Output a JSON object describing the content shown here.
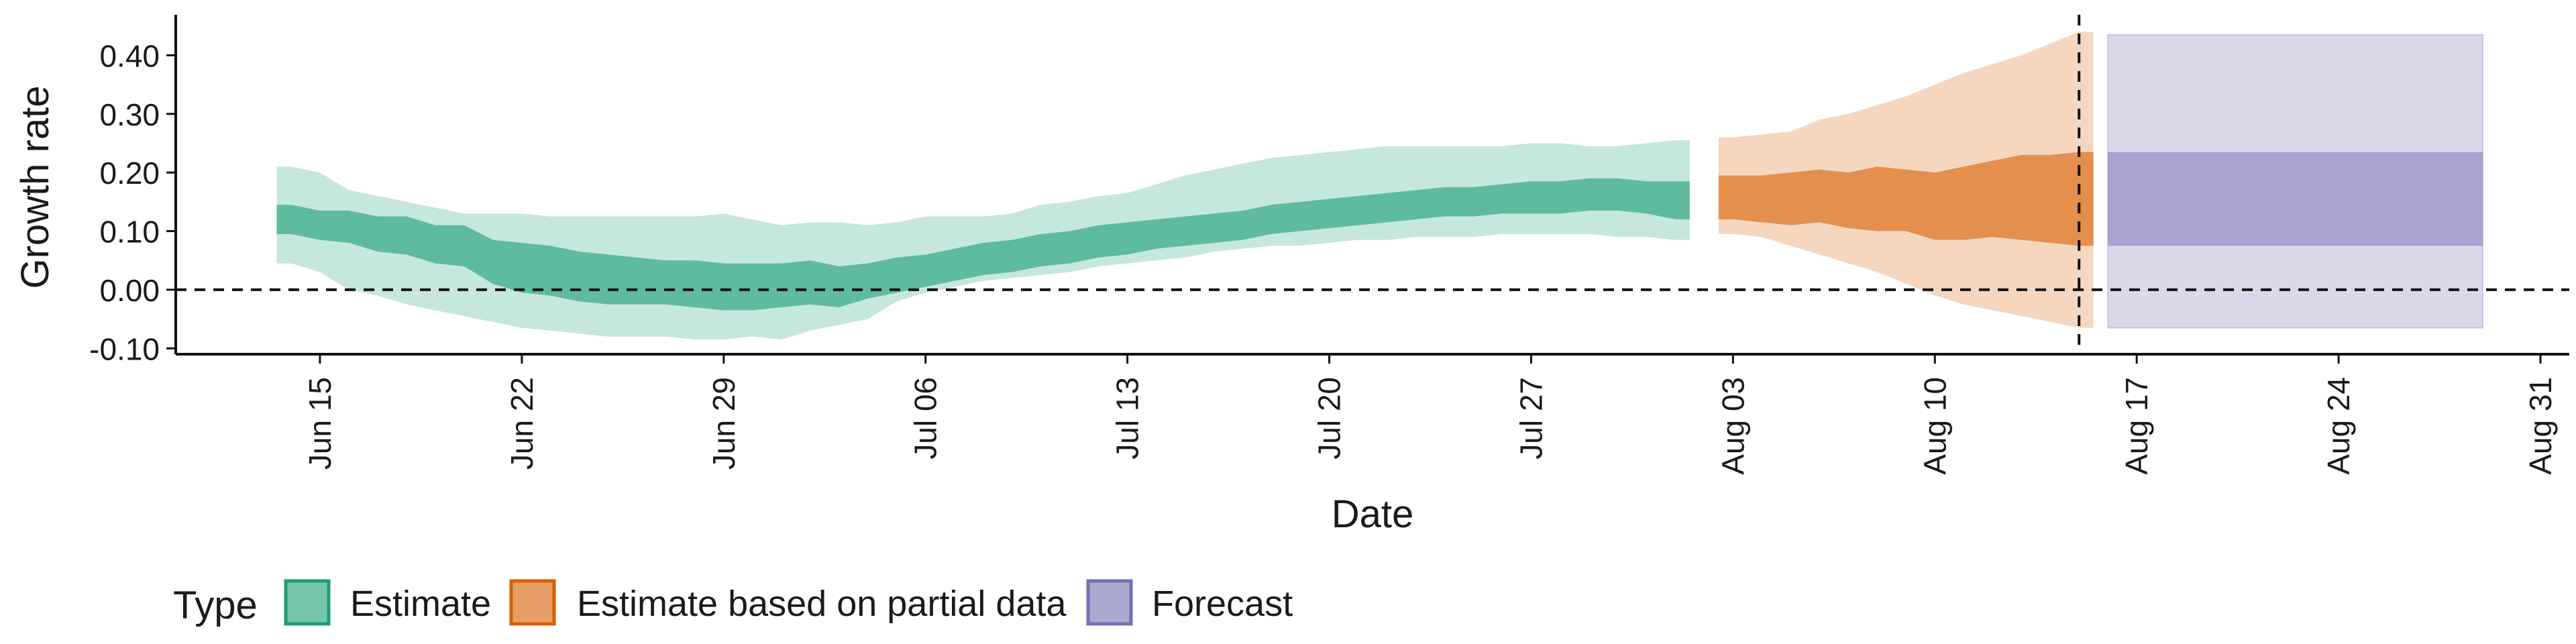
{
  "chart_data": {
    "type": "area",
    "xlabel": "Date",
    "ylabel": "Growth rate",
    "ylim": [
      -0.11,
      0.46
    ],
    "xlim": [
      "2020-06-10",
      "2020-09-01"
    ],
    "y_ticks": [
      -0.1,
      0.0,
      0.1,
      0.2,
      0.3,
      0.4
    ],
    "y_tick_labels": [
      "-0.10",
      "0.00",
      "0.10",
      "0.20",
      "0.30",
      "0.40"
    ],
    "x_ticks": [
      "2020-06-15",
      "2020-06-22",
      "2020-06-29",
      "2020-07-06",
      "2020-07-13",
      "2020-07-20",
      "2020-07-27",
      "2020-08-03",
      "2020-08-10",
      "2020-08-17",
      "2020-08-24",
      "2020-08-31"
    ],
    "x_tick_labels": [
      "Jun 15",
      "Jun 22",
      "Jun 29",
      "Jul 06",
      "Jul 13",
      "Jul 20",
      "Jul 27",
      "Aug 03",
      "Aug 10",
      "Aug 17",
      "Aug 24",
      "Aug 31"
    ],
    "reference_lines": [
      {
        "axis": "y",
        "value": 0.0,
        "style": "dashed"
      },
      {
        "axis": "x",
        "value": "2020-08-15",
        "style": "dashed"
      }
    ],
    "legend": {
      "title": "Type",
      "position": "bottom",
      "entries": [
        {
          "label": "Estimate",
          "color": "#1b9e77"
        },
        {
          "label": "Estimate based on partial data",
          "color": "#d95f02"
        },
        {
          "label": "Forecast",
          "color": "#7570b3"
        }
      ]
    },
    "series": [
      {
        "name": "Estimate",
        "color": "#1b9e77",
        "x": [
          "2020-06-14",
          "2020-06-15",
          "2020-06-16",
          "2020-06-17",
          "2020-06-18",
          "2020-06-19",
          "2020-06-20",
          "2020-06-21",
          "2020-06-22",
          "2020-06-23",
          "2020-06-24",
          "2020-06-25",
          "2020-06-26",
          "2020-06-27",
          "2020-06-28",
          "2020-06-29",
          "2020-06-30",
          "2020-07-01",
          "2020-07-02",
          "2020-07-03",
          "2020-07-04",
          "2020-07-05",
          "2020-07-06",
          "2020-07-07",
          "2020-07-08",
          "2020-07-09",
          "2020-07-10",
          "2020-07-11",
          "2020-07-12",
          "2020-07-13",
          "2020-07-14",
          "2020-07-15",
          "2020-07-16",
          "2020-07-17",
          "2020-07-18",
          "2020-07-19",
          "2020-07-20",
          "2020-07-21",
          "2020-07-22",
          "2020-07-23",
          "2020-07-24",
          "2020-07-25",
          "2020-07-26",
          "2020-07-27",
          "2020-07-28",
          "2020-07-29",
          "2020-07-30",
          "2020-07-31",
          "2020-08-01"
        ],
        "outer_upper": [
          0.21,
          0.2,
          0.17,
          0.16,
          0.15,
          0.14,
          0.13,
          0.13,
          0.13,
          0.125,
          0.125,
          0.125,
          0.125,
          0.125,
          0.125,
          0.13,
          0.12,
          0.11,
          0.115,
          0.115,
          0.11,
          0.115,
          0.125,
          0.125,
          0.125,
          0.13,
          0.145,
          0.15,
          0.16,
          0.165,
          0.18,
          0.195,
          0.205,
          0.215,
          0.225,
          0.23,
          0.235,
          0.24,
          0.245,
          0.245,
          0.245,
          0.245,
          0.245,
          0.25,
          0.25,
          0.245,
          0.245,
          0.25,
          0.255
        ],
        "outer_lower": [
          0.045,
          0.03,
          0.0,
          -0.01,
          -0.025,
          -0.035,
          -0.045,
          -0.055,
          -0.065,
          -0.07,
          -0.075,
          -0.08,
          -0.08,
          -0.08,
          -0.085,
          -0.085,
          -0.08,
          -0.085,
          -0.07,
          -0.06,
          -0.05,
          -0.02,
          -0.005,
          0.005,
          0.015,
          0.02,
          0.025,
          0.03,
          0.04,
          0.045,
          0.05,
          0.055,
          0.065,
          0.07,
          0.075,
          0.075,
          0.08,
          0.085,
          0.085,
          0.09,
          0.09,
          0.09,
          0.095,
          0.095,
          0.095,
          0.095,
          0.09,
          0.09,
          0.085
        ],
        "inner_upper": [
          0.145,
          0.135,
          0.135,
          0.125,
          0.125,
          0.11,
          0.11,
          0.085,
          0.08,
          0.075,
          0.065,
          0.06,
          0.055,
          0.05,
          0.05,
          0.045,
          0.045,
          0.045,
          0.05,
          0.04,
          0.045,
          0.055,
          0.06,
          0.07,
          0.08,
          0.085,
          0.095,
          0.1,
          0.11,
          0.115,
          0.12,
          0.125,
          0.13,
          0.135,
          0.145,
          0.15,
          0.155,
          0.16,
          0.165,
          0.17,
          0.175,
          0.175,
          0.18,
          0.185,
          0.185,
          0.19,
          0.19,
          0.185,
          0.185
        ],
        "inner_lower": [
          0.095,
          0.085,
          0.08,
          0.065,
          0.06,
          0.045,
          0.04,
          0.01,
          -0.005,
          -0.01,
          -0.02,
          -0.025,
          -0.025,
          -0.025,
          -0.03,
          -0.035,
          -0.035,
          -0.03,
          -0.025,
          -0.03,
          -0.015,
          -0.005,
          0.005,
          0.015,
          0.025,
          0.03,
          0.04,
          0.045,
          0.055,
          0.06,
          0.07,
          0.075,
          0.08,
          0.085,
          0.095,
          0.1,
          0.105,
          0.11,
          0.115,
          0.12,
          0.125,
          0.125,
          0.13,
          0.13,
          0.13,
          0.135,
          0.135,
          0.13,
          0.12
        ]
      },
      {
        "name": "Estimate based on partial data",
        "color": "#d95f02",
        "x": [
          "2020-08-03",
          "2020-08-04",
          "2020-08-05",
          "2020-08-06",
          "2020-08-07",
          "2020-08-08",
          "2020-08-09",
          "2020-08-10",
          "2020-08-11",
          "2020-08-12",
          "2020-08-13",
          "2020-08-14",
          "2020-08-15"
        ],
        "outer_upper": [
          0.26,
          0.265,
          0.27,
          0.29,
          0.3,
          0.315,
          0.33,
          0.35,
          0.37,
          0.385,
          0.4,
          0.42,
          0.44
        ],
        "outer_lower": [
          0.095,
          0.09,
          0.075,
          0.06,
          0.045,
          0.03,
          0.01,
          -0.01,
          -0.025,
          -0.035,
          -0.045,
          -0.055,
          -0.065
        ],
        "inner_upper": [
          0.195,
          0.195,
          0.2,
          0.205,
          0.2,
          0.21,
          0.205,
          0.2,
          0.21,
          0.22,
          0.23,
          0.23,
          0.235
        ],
        "inner_lower": [
          0.12,
          0.115,
          0.11,
          0.115,
          0.105,
          0.1,
          0.1,
          0.085,
          0.085,
          0.09,
          0.085,
          0.08,
          0.075
        ]
      },
      {
        "name": "Forecast",
        "color": "#7570b3",
        "x": [
          "2020-08-16",
          "2020-08-29"
        ],
        "outer_upper": [
          0.435,
          0.435
        ],
        "outer_lower": [
          -0.065,
          -0.065
        ],
        "inner_upper": [
          0.235,
          0.235
        ],
        "inner_lower": [
          0.075,
          0.075
        ]
      }
    ]
  }
}
